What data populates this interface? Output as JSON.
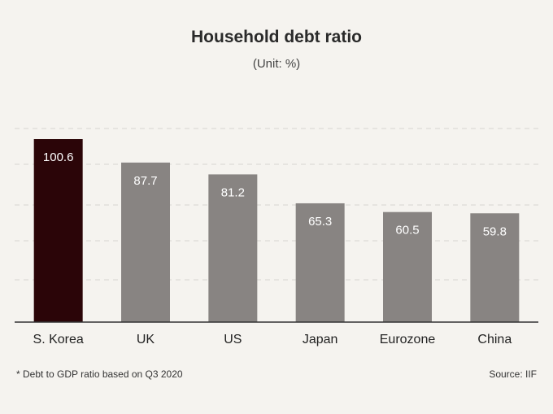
{
  "chart_data": {
    "type": "bar",
    "title": "Household debt ratio",
    "subtitle": "(Unit: %)",
    "categories": [
      "S. Korea",
      "UK",
      "US",
      "Japan",
      "Eurozone",
      "China"
    ],
    "values": [
      100.6,
      87.7,
      81.2,
      65.3,
      60.5,
      59.8
    ],
    "value_labels": [
      "100.6",
      "87.7",
      "81.2",
      "65.3",
      "60.5",
      "59.8"
    ],
    "highlight_index": 0,
    "ylim": [
      0,
      110
    ],
    "grid": true,
    "colors": {
      "highlight": "#2b0508",
      "bar": "#888482",
      "grid": "#d8d5d0",
      "axis": "#333333",
      "label_on_bar": "#ffffff"
    },
    "footnote": "* Debt to GDP ratio based on Q3 2020",
    "source": "Source: IIF"
  }
}
